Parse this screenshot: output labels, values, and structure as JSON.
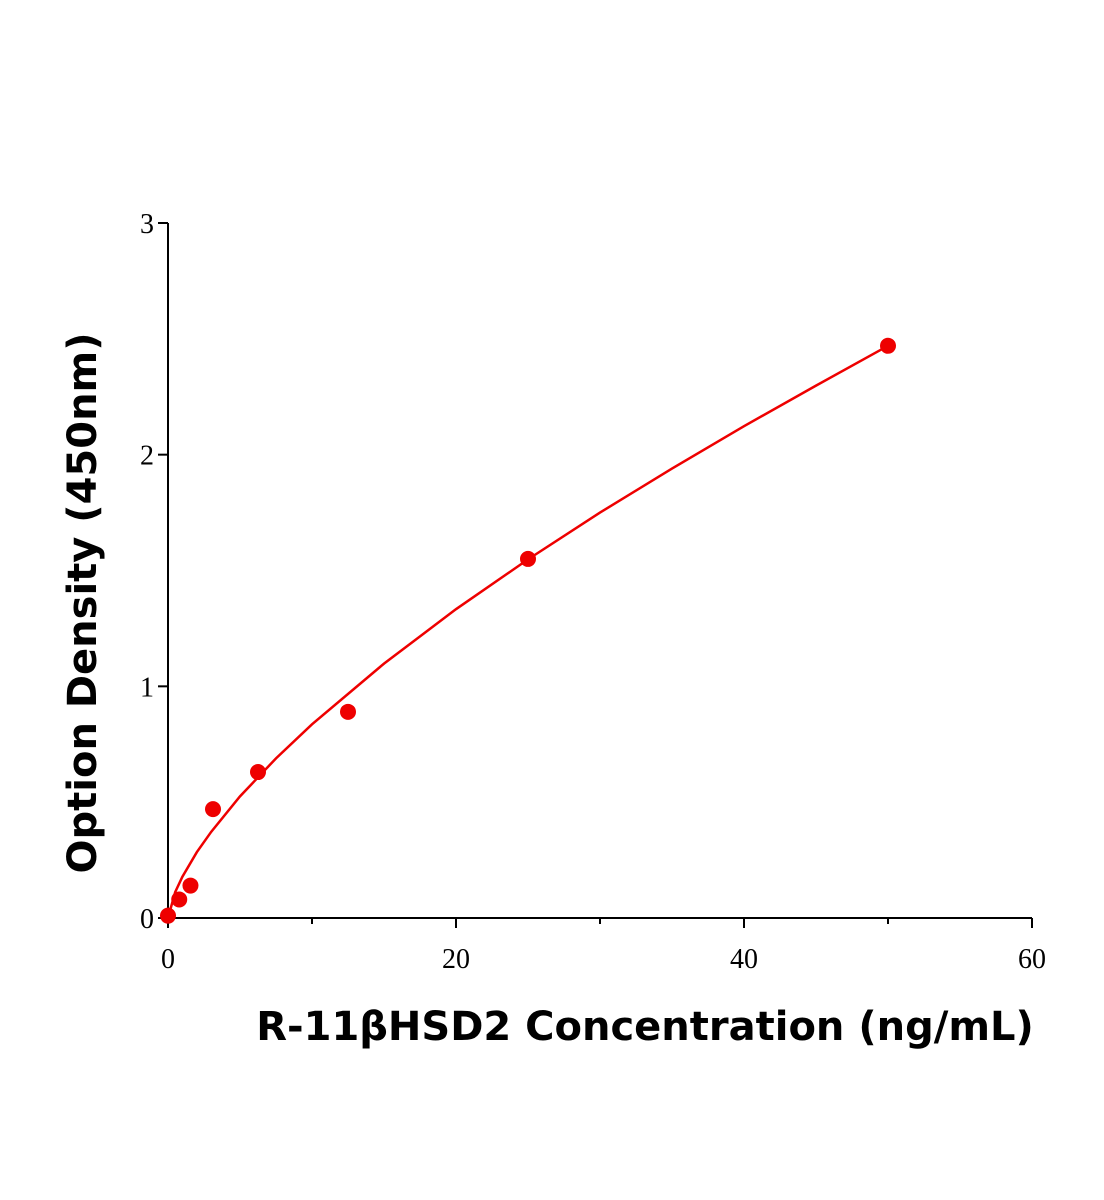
{
  "chart_data": {
    "type": "scatter",
    "xlabel": "R-11βHSD2 Concentration (ng/mL)",
    "ylabel": "Option Density (450nm)",
    "points": {
      "color": "#ee0000",
      "x": [
        0,
        0.78,
        1.56,
        3.125,
        6.25,
        12.5,
        25,
        50
      ],
      "y": [
        0.01,
        0.08,
        0.14,
        0.47,
        0.63,
        0.89,
        1.55,
        2.47
      ]
    },
    "fit": {
      "color": "#ee0000",
      "x": [
        0,
        0.5,
        1,
        2,
        3,
        5,
        7.5,
        10,
        15,
        20,
        25,
        30,
        35,
        40,
        45,
        50
      ],
      "y": [
        0,
        0.112,
        0.178,
        0.284,
        0.372,
        0.525,
        0.689,
        0.836,
        1.098,
        1.333,
        1.548,
        1.75,
        1.94,
        2.123,
        2.298,
        2.47
      ]
    },
    "xlim": [
      0,
      60
    ],
    "xticks": [
      0,
      20,
      40,
      60
    ],
    "xminorticks": [
      10,
      30,
      50
    ],
    "ylim": [
      0,
      3
    ],
    "yticks": [
      0,
      1,
      2,
      3
    ]
  }
}
